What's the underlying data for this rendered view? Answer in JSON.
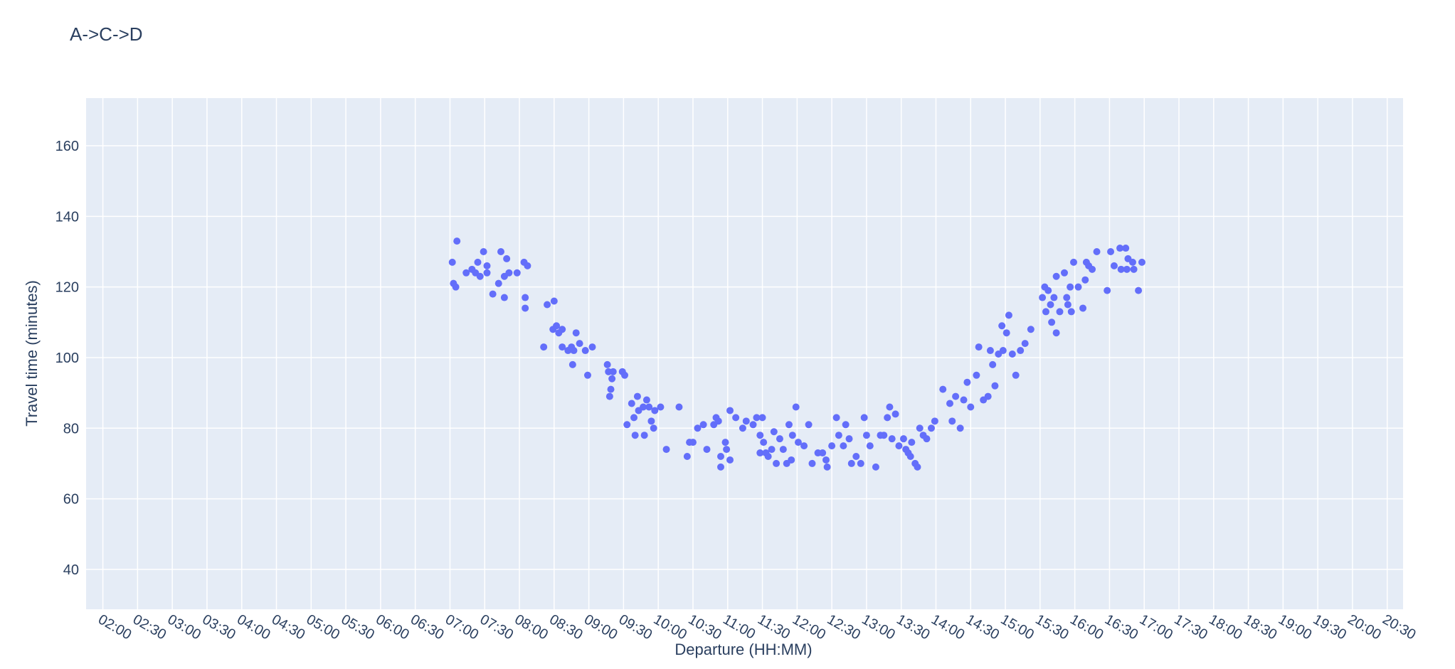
{
  "chart_data": {
    "type": "scatter",
    "title": "A->C->D",
    "x_label": "Departure (HH:MM)",
    "y_label": "Travel time (minutes)",
    "color": "#636efa",
    "grid": true,
    "xlim": [
      105.5,
      1243.7
    ],
    "ylim": [
      28.7,
      173.5
    ],
    "xticks": [
      {
        "value": 120,
        "label": "02:00"
      },
      {
        "value": 150,
        "label": "02:30"
      },
      {
        "value": 180,
        "label": "03:00"
      },
      {
        "value": 210,
        "label": "03:30"
      },
      {
        "value": 240,
        "label": "04:00"
      },
      {
        "value": 270,
        "label": "04:30"
      },
      {
        "value": 300,
        "label": "05:00"
      },
      {
        "value": 330,
        "label": "05:30"
      },
      {
        "value": 360,
        "label": "06:00"
      },
      {
        "value": 390,
        "label": "06:30"
      },
      {
        "value": 420,
        "label": "07:00"
      },
      {
        "value": 450,
        "label": "07:30"
      },
      {
        "value": 480,
        "label": "08:00"
      },
      {
        "value": 510,
        "label": "08:30"
      },
      {
        "value": 540,
        "label": "09:00"
      },
      {
        "value": 570,
        "label": "09:30"
      },
      {
        "value": 600,
        "label": "10:00"
      },
      {
        "value": 630,
        "label": "10:30"
      },
      {
        "value": 660,
        "label": "11:00"
      },
      {
        "value": 690,
        "label": "11:30"
      },
      {
        "value": 720,
        "label": "12:00"
      },
      {
        "value": 750,
        "label": "12:30"
      },
      {
        "value": 780,
        "label": "13:00"
      },
      {
        "value": 810,
        "label": "13:30"
      },
      {
        "value": 840,
        "label": "14:00"
      },
      {
        "value": 870,
        "label": "14:30"
      },
      {
        "value": 900,
        "label": "15:00"
      },
      {
        "value": 930,
        "label": "15:30"
      },
      {
        "value": 960,
        "label": "16:00"
      },
      {
        "value": 990,
        "label": "16:30"
      },
      {
        "value": 1020,
        "label": "17:00"
      },
      {
        "value": 1050,
        "label": "17:30"
      },
      {
        "value": 1080,
        "label": "18:00"
      },
      {
        "value": 1110,
        "label": "18:30"
      },
      {
        "value": 1140,
        "label": "19:00"
      },
      {
        "value": 1170,
        "label": "19:30"
      },
      {
        "value": 1200,
        "label": "20:00"
      },
      {
        "value": 1230,
        "label": "20:30"
      }
    ],
    "yticks": [
      40,
      60,
      80,
      100,
      120,
      140,
      160
    ],
    "x": [
      422,
      423,
      425,
      426,
      434,
      439,
      442,
      444,
      446,
      449,
      452,
      452,
      457,
      462,
      464,
      467,
      467,
      469,
      471,
      478,
      484,
      487,
      485,
      485,
      501,
      504,
      510,
      509,
      512,
      514,
      517,
      517,
      522,
      525,
      526,
      527,
      529,
      532,
      537,
      539,
      543,
      556,
      557,
      558,
      559,
      560,
      561,
      569,
      571,
      573,
      577,
      579,
      580,
      582,
      583,
      587,
      588,
      590,
      592,
      594,
      596,
      597,
      602,
      607,
      618,
      625,
      627,
      630,
      634,
      639,
      642,
      648,
      650,
      652,
      654,
      654,
      658,
      659,
      662,
      662,
      667,
      673,
      676,
      682,
      685,
      688,
      688,
      690,
      691,
      693,
      695,
      698,
      700,
      702,
      705,
      708,
      711,
      713,
      715,
      716,
      719,
      721,
      726,
      730,
      733,
      738,
      742,
      745,
      746,
      750,
      754,
      756,
      760,
      762,
      765,
      767,
      771,
      775,
      778,
      780,
      783,
      788,
      792,
      795,
      798,
      800,
      802,
      805,
      808,
      812,
      814,
      816,
      818,
      819,
      822,
      824,
      826,
      829,
      832,
      836,
      839,
      846,
      852,
      854,
      857,
      861,
      864,
      867,
      870,
      875,
      877,
      881,
      885,
      887,
      889,
      891,
      894,
      897,
      898,
      901,
      903,
      906,
      909,
      913,
      917,
      922,
      932,
      934,
      935,
      937,
      939,
      940,
      942,
      944,
      944,
      947,
      951,
      953,
      954,
      956,
      957,
      959,
      963,
      967,
      969,
      970,
      972,
      975,
      979,
      988,
      991,
      994,
      999,
      1000,
      1004,
      1005,
      1006,
      1010,
      1011,
      1015,
      1018
    ],
    "values": [
      127,
      121,
      120,
      133,
      124,
      125,
      124,
      127,
      123,
      130,
      126,
      124,
      118,
      121,
      130,
      117,
      123,
      128,
      124,
      124,
      127,
      126,
      117,
      114,
      103,
      115,
      116,
      108,
      109,
      107,
      108,
      103,
      102,
      103,
      98,
      102,
      107,
      104,
      102,
      95,
      103,
      98,
      96,
      89,
      91,
      94,
      96,
      96,
      95,
      81,
      87,
      83,
      78,
      89,
      85,
      86,
      78,
      88,
      86,
      82,
      80,
      85,
      86,
      74,
      86,
      72,
      76,
      76,
      80,
      81,
      74,
      81,
      83,
      82,
      72,
      69,
      76,
      74,
      85,
      71,
      83,
      80,
      82,
      81,
      83,
      78,
      73,
      83,
      76,
      73,
      72,
      74,
      79,
      70,
      77,
      74,
      70,
      81,
      71,
      78,
      86,
      76,
      75,
      81,
      70,
      73,
      73,
      71,
      69,
      75,
      83,
      78,
      75,
      81,
      77,
      70,
      72,
      70,
      83,
      78,
      75,
      69,
      78,
      78,
      83,
      86,
      77,
      84,
      75,
      77,
      74,
      73,
      72,
      76,
      70,
      69,
      80,
      78,
      77,
      80,
      82,
      91,
      87,
      82,
      89,
      80,
      88,
      93,
      86,
      95,
      103,
      88,
      89,
      102,
      98,
      92,
      101,
      109,
      102,
      107,
      112,
      101,
      95,
      102,
      104,
      108,
      117,
      120,
      113,
      119,
      115,
      110,
      117,
      123,
      107,
      113,
      124,
      117,
      115,
      120,
      113,
      127,
      120,
      114,
      122,
      127,
      126,
      125,
      130,
      119,
      130,
      126,
      131,
      125,
      131,
      125,
      128,
      127,
      125,
      119,
      127
    ]
  }
}
